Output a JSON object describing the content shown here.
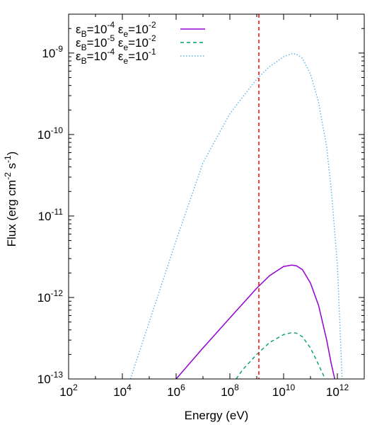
{
  "chart_data": {
    "type": "line",
    "title": "",
    "xlabel": "Energy (eV)",
    "ylabel": "Flux (erg cm-2 s-1)",
    "x_scale": "log",
    "y_scale": "log",
    "xlim": [
      100,
      10000000000000
    ],
    "ylim": [
      1e-13,
      3e-09
    ],
    "x_ticks": [
      {
        "value": 100,
        "base": "10",
        "exp": "2"
      },
      {
        "value": 10000,
        "base": "10",
        "exp": "4"
      },
      {
        "value": 1000000,
        "base": "10",
        "exp": "6"
      },
      {
        "value": 100000000,
        "base": "10",
        "exp": "8"
      },
      {
        "value": 10000000000,
        "base": "10",
        "exp": "10"
      },
      {
        "value": 1000000000000,
        "base": "10",
        "exp": "12"
      }
    ],
    "y_ticks": [
      {
        "value": 1e-13,
        "base": "10",
        "exp": "-13"
      },
      {
        "value": 1e-12,
        "base": "10",
        "exp": "-12"
      },
      {
        "value": 1e-11,
        "base": "10",
        "exp": "-11"
      },
      {
        "value": 1e-10,
        "base": "10",
        "exp": "-10"
      },
      {
        "value": 1e-09,
        "base": "10",
        "exp": "-9"
      }
    ],
    "vertical_line": {
      "x": 1200000000,
      "color": "#ff0000",
      "style": "dashed"
    },
    "legend_position": "top-left",
    "grid": false,
    "series": [
      {
        "name": "εB=10-4 εe=10-2",
        "legend": {
          "p1": "ε",
          "s1": "B",
          "p2": "=10",
          "e1": "-4",
          "p3": " ε",
          "s2": "e",
          "p4": "=10",
          "e2": "-2"
        },
        "color": "#9400d3",
        "style": "solid",
        "x": [
          1000000,
          10000000,
          100000000,
          1000000000,
          3000000000,
          10000000000,
          20000000000,
          30000000000,
          50000000000,
          100000000000,
          200000000000,
          400000000000,
          600000000000,
          800000000000
        ],
        "y": [
          1e-13,
          2.4e-13,
          5.6e-13,
          1.3e-12,
          1.85e-12,
          2.4e-12,
          2.5e-12,
          2.45e-12,
          2.2e-12,
          1.5e-12,
          8e-13,
          3e-13,
          1.5e-13,
          1e-13
        ]
      },
      {
        "name": "εB=10-5 εe=10-2",
        "legend": {
          "p1": "ε",
          "s1": "B",
          "p2": "=10",
          "e1": "-5",
          "p3": " ε",
          "s2": "e",
          "p4": "=10",
          "e2": "-2"
        },
        "color": "#009e73",
        "style": "dashed",
        "x": [
          170000000,
          300000000,
          1000000000,
          3000000000,
          10000000000,
          20000000000,
          30000000000,
          50000000000,
          100000000000,
          200000000000,
          350000000000
        ],
        "y": [
          1e-13,
          1.3e-13,
          2e-13,
          2.8e-13,
          3.5e-13,
          3.7e-13,
          3.65e-13,
          3.3e-13,
          2.4e-13,
          1.5e-13,
          1e-13
        ]
      },
      {
        "name": "εB=10-4 εe=10-1",
        "legend": {
          "p1": "ε",
          "s1": "B",
          "p2": "=10",
          "e1": "-4",
          "p3": " ε",
          "s2": "e",
          "p4": "=10",
          "e2": "-1"
        },
        "color": "#56b4e9",
        "style": "dotted",
        "x": [
          20000,
          100000,
          1000000,
          10000000,
          100000000,
          1000000000,
          3000000000,
          10000000000,
          20000000000,
          30000000000,
          50000000000,
          100000000000,
          200000000000,
          400000000000,
          600000000000,
          1000000000000,
          1500000000000
        ],
        "y": [
          1e-13,
          5e-13,
          5e-12,
          4.5e-11,
          1.8e-10,
          4.8e-10,
          6.8e-10,
          9e-10,
          9.8e-10,
          9.7e-10,
          8.6e-10,
          5.5e-10,
          2.5e-10,
          7e-11,
          2e-11,
          2.5e-12,
          1e-13
        ]
      }
    ]
  }
}
